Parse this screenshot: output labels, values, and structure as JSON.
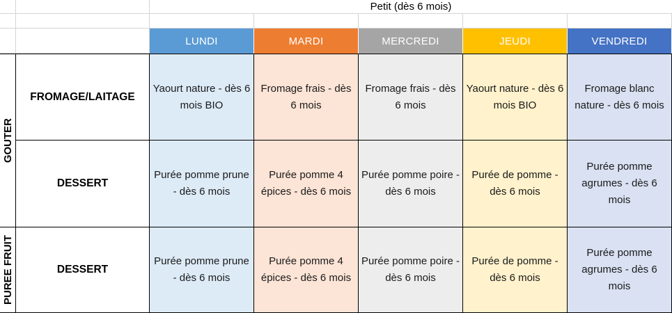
{
  "title": "Petit (dès 6 mois)",
  "days": [
    {
      "label": "LUNDI",
      "color": "#5b9bd5",
      "tint": "#ddebf7"
    },
    {
      "label": "MARDI",
      "color": "#ed7d31",
      "tint": "#fce4d6"
    },
    {
      "label": "MERCREDI",
      "color": "#a5a5a5",
      "tint": "#ededed"
    },
    {
      "label": "JEUDI",
      "color": "#ffc000",
      "tint": "#fff2cc"
    },
    {
      "label": "VENDREDI",
      "color": "#4472c4",
      "tint": "#d9e1f2"
    }
  ],
  "groups": [
    {
      "label": "GOUTER"
    },
    {
      "label": "PUREE FRUIT"
    }
  ],
  "rows": [
    {
      "label": "FROMAGE/LAITAGE",
      "cells": [
        "Yaourt nature - dès 6 mois BIO",
        "Fromage frais - dès 6 mois",
        "Fromage frais - dès 6 mois",
        "Yaourt nature - dès 6 mois BIO",
        "Fromage blanc nature - dès 6 mois"
      ]
    },
    {
      "label": "DESSERT",
      "cells": [
        "Purée pomme prune - dès 6 mois",
        "Purée pomme 4 épices - dès 6 mois",
        "Purée pomme poire - dès 6 mois",
        "Purée de pomme - dès 6 mois",
        "Purée pomme agrumes - dès 6 mois"
      ]
    },
    {
      "label": "DESSERT",
      "cells": [
        "Purée pomme prune - dès 6 mois",
        "Purée pomme 4 épices - dès 6 mois",
        "Purée pomme poire - dès 6 mois",
        "Purée de pomme - dès 6 mois",
        "Purée pomme agrumes - dès 6 mois"
      ]
    }
  ]
}
